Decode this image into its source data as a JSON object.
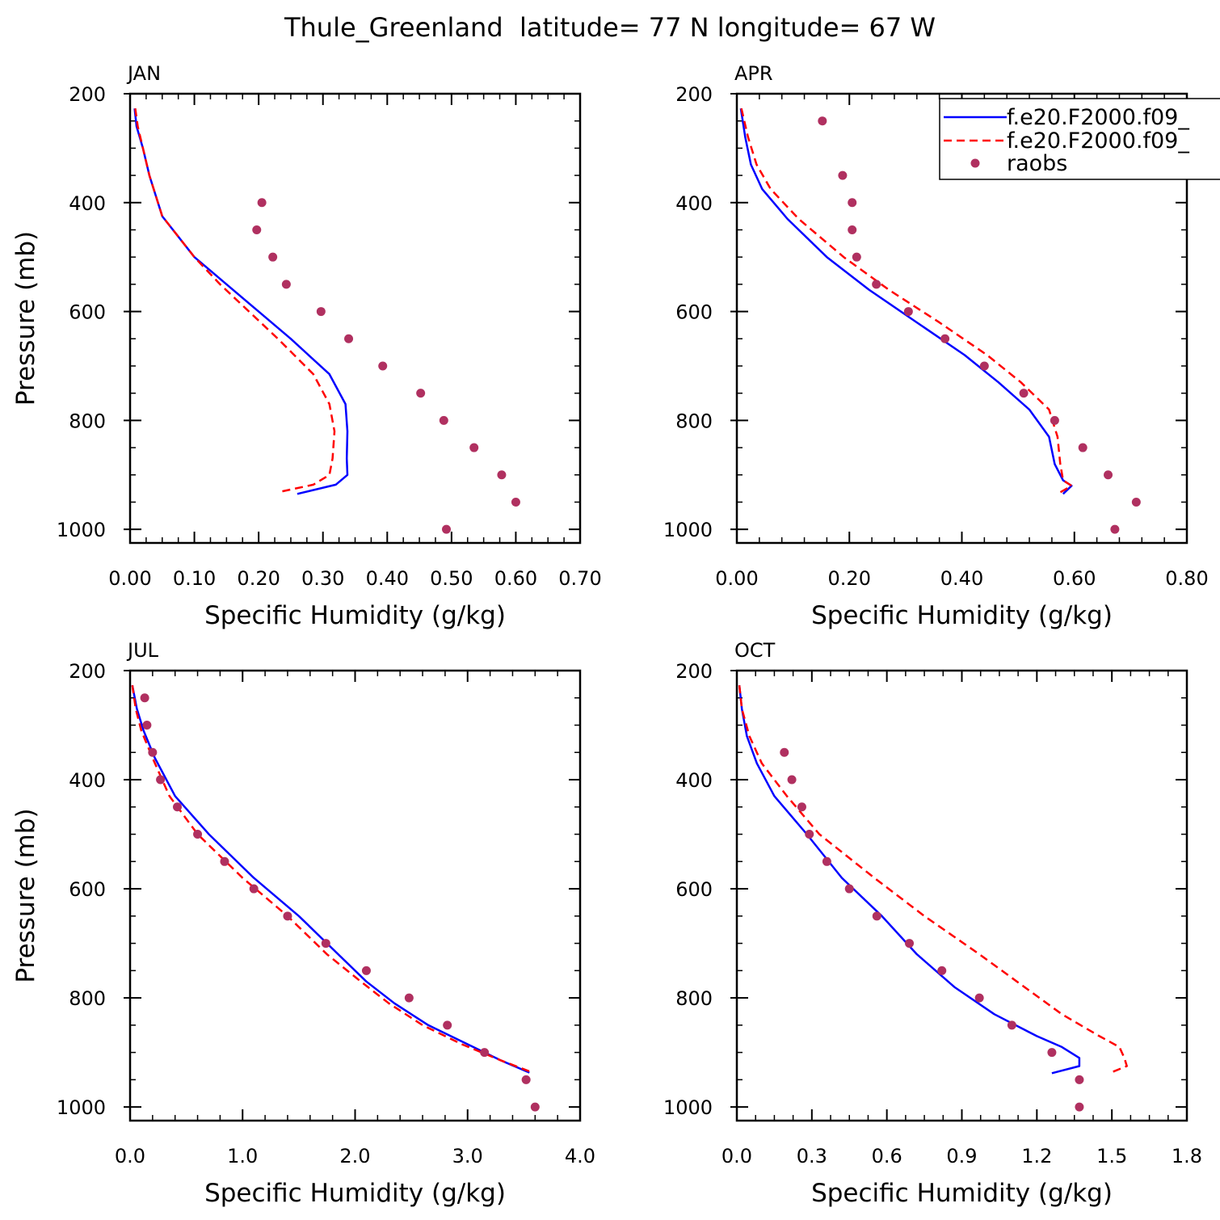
{
  "figure": {
    "title": "Thule_Greenland  latitude= 77 N longitude= 67 W"
  },
  "legend": {
    "placement": "top-right of APR panel (clipped)",
    "entries": [
      {
        "label": "f.e20.F2000.f09_",
        "style": "solid",
        "color": "#0000ff"
      },
      {
        "label": "f.e20.F2000.f09_",
        "style": "dashed",
        "color": "#ff0000"
      },
      {
        "label": "raobs",
        "style": "marker",
        "color": "#b03060"
      }
    ]
  },
  "colors": {
    "series_solid": "#0000ff",
    "series_dashed": "#ff0000",
    "raobs": "#b03060",
    "axes": "#000000"
  },
  "chart_data": [
    {
      "type": "line",
      "panel": "JAN",
      "xlabel": "Specific Humidity (g/kg)",
      "ylabel": "Pressure (mb)",
      "xlim": [
        0,
        0.7
      ],
      "ylim": [
        200,
        1025
      ],
      "y_inverted": true,
      "xticks": [
        "0.00",
        "0.10",
        "0.20",
        "0.30",
        "0.40",
        "0.50",
        "0.60",
        "0.70"
      ],
      "yticks": [
        "200",
        "400",
        "600",
        "800",
        "1000"
      ],
      "series": [
        {
          "name": "f.e20.F2000.f09_",
          "style": "solid",
          "points": [
            [
              0.007,
              227
            ],
            [
              0.01,
              260
            ],
            [
              0.02,
              300
            ],
            [
              0.03,
              350
            ],
            [
              0.05,
              425
            ],
            [
              0.1,
              500
            ],
            [
              0.15,
              550
            ],
            [
              0.2,
              600
            ],
            [
              0.25,
              650
            ],
            [
              0.31,
              715
            ],
            [
              0.335,
              770
            ],
            [
              0.338,
              820
            ],
            [
              0.337,
              870
            ],
            [
              0.338,
              900
            ],
            [
              0.32,
              918
            ],
            [
              0.26,
              935
            ]
          ]
        },
        {
          "name": "f.e20.F2000.f09_",
          "style": "dashed",
          "points": [
            [
              0.008,
              227
            ],
            [
              0.012,
              260
            ],
            [
              0.02,
              300
            ],
            [
              0.03,
              350
            ],
            [
              0.05,
              425
            ],
            [
              0.1,
              500
            ],
            [
              0.14,
              550
            ],
            [
              0.185,
              600
            ],
            [
              0.23,
              650
            ],
            [
              0.285,
              715
            ],
            [
              0.31,
              770
            ],
            [
              0.318,
              820
            ],
            [
              0.315,
              870
            ],
            [
              0.31,
              900
            ],
            [
              0.285,
              918
            ],
            [
              0.23,
              932
            ]
          ]
        },
        {
          "name": "raobs",
          "style": "marker",
          "points": [
            [
              0.205,
              400
            ],
            [
              0.197,
              450
            ],
            [
              0.222,
              500
            ],
            [
              0.243,
              550
            ],
            [
              0.297,
              600
            ],
            [
              0.34,
              650
            ],
            [
              0.393,
              700
            ],
            [
              0.452,
              750
            ],
            [
              0.488,
              800
            ],
            [
              0.535,
              850
            ],
            [
              0.578,
              900
            ],
            [
              0.6,
              950
            ],
            [
              0.492,
              1000
            ]
          ]
        }
      ]
    },
    {
      "type": "line",
      "panel": "APR",
      "xlabel": "Specific Humidity (g/kg)",
      "ylabel": "",
      "xlim": [
        0,
        0.8
      ],
      "ylim": [
        200,
        1025
      ],
      "y_inverted": true,
      "xticks": [
        "0.00",
        "0.20",
        "0.40",
        "0.60",
        "0.80"
      ],
      "yticks": [
        "200",
        "400",
        "600",
        "800",
        "1000"
      ],
      "series": [
        {
          "name": "f.e20.F2000.f09_",
          "style": "solid",
          "points": [
            [
              0.007,
              227
            ],
            [
              0.015,
              280
            ],
            [
              0.025,
              330
            ],
            [
              0.045,
              375
            ],
            [
              0.09,
              430
            ],
            [
              0.16,
              500
            ],
            [
              0.235,
              560
            ],
            [
              0.32,
              620
            ],
            [
              0.405,
              680
            ],
            [
              0.465,
              730
            ],
            [
              0.52,
              780
            ],
            [
              0.555,
              830
            ],
            [
              0.565,
              880
            ],
            [
              0.58,
              910
            ],
            [
              0.595,
              920
            ],
            [
              0.58,
              935
            ]
          ]
        },
        {
          "name": "f.e20.F2000.f09_",
          "style": "dashed",
          "points": [
            [
              0.008,
              227
            ],
            [
              0.02,
              280
            ],
            [
              0.035,
              330
            ],
            [
              0.06,
              375
            ],
            [
              0.11,
              430
            ],
            [
              0.19,
              500
            ],
            [
              0.27,
              560
            ],
            [
              0.36,
              620
            ],
            [
              0.445,
              680
            ],
            [
              0.505,
              730
            ],
            [
              0.555,
              780
            ],
            [
              0.57,
              830
            ],
            [
              0.575,
              880
            ],
            [
              0.58,
              910
            ],
            [
              0.595,
              920
            ],
            [
              0.575,
              932
            ]
          ]
        },
        {
          "name": "raobs",
          "style": "marker",
          "points": [
            [
              0.152,
              250
            ],
            [
              0.188,
              350
            ],
            [
              0.205,
              400
            ],
            [
              0.205,
              450
            ],
            [
              0.213,
              500
            ],
            [
              0.248,
              550
            ],
            [
              0.305,
              600
            ],
            [
              0.37,
              650
            ],
            [
              0.44,
              700
            ],
            [
              0.51,
              750
            ],
            [
              0.565,
              800
            ],
            [
              0.615,
              850
            ],
            [
              0.66,
              900
            ],
            [
              0.71,
              950
            ],
            [
              0.672,
              1000
            ]
          ]
        }
      ]
    },
    {
      "type": "line",
      "panel": "JUL",
      "xlabel": "Specific Humidity (g/kg)",
      "ylabel": "Pressure (mb)",
      "xlim": [
        0,
        4.0
      ],
      "ylim": [
        200,
        1025
      ],
      "y_inverted": true,
      "xticks": [
        "0.0",
        "1.0",
        "2.0",
        "3.0",
        "4.0"
      ],
      "yticks": [
        "200",
        "400",
        "600",
        "800",
        "1000"
      ],
      "series": [
        {
          "name": "f.e20.F2000.f09_",
          "style": "solid",
          "points": [
            [
              0.02,
              227
            ],
            [
              0.06,
              270
            ],
            [
              0.12,
              310
            ],
            [
              0.22,
              360
            ],
            [
              0.4,
              430
            ],
            [
              0.7,
              500
            ],
            [
              1.1,
              580
            ],
            [
              1.5,
              650
            ],
            [
              1.85,
              720
            ],
            [
              2.1,
              770
            ],
            [
              2.35,
              810
            ],
            [
              2.65,
              850
            ],
            [
              3.0,
              885
            ],
            [
              3.3,
              915
            ],
            [
              3.55,
              937
            ]
          ]
        },
        {
          "name": "f.e20.F2000.f09_",
          "style": "dashed",
          "points": [
            [
              0.02,
              227
            ],
            [
              0.05,
              270
            ],
            [
              0.1,
              310
            ],
            [
              0.2,
              360
            ],
            [
              0.35,
              430
            ],
            [
              0.6,
              500
            ],
            [
              1.0,
              580
            ],
            [
              1.4,
              650
            ],
            [
              1.75,
              720
            ],
            [
              2.05,
              770
            ],
            [
              2.3,
              810
            ],
            [
              2.6,
              850
            ],
            [
              2.95,
              885
            ],
            [
              3.3,
              915
            ],
            [
              3.58,
              937
            ]
          ]
        },
        {
          "name": "raobs",
          "style": "marker",
          "points": [
            [
              0.13,
              250
            ],
            [
              0.15,
              300
            ],
            [
              0.2,
              350
            ],
            [
              0.27,
              400
            ],
            [
              0.42,
              450
            ],
            [
              0.6,
              500
            ],
            [
              0.84,
              550
            ],
            [
              1.1,
              600
            ],
            [
              1.4,
              650
            ],
            [
              1.74,
              700
            ],
            [
              2.1,
              750
            ],
            [
              2.48,
              800
            ],
            [
              2.82,
              850
            ],
            [
              3.15,
              900
            ],
            [
              3.52,
              950
            ],
            [
              3.6,
              1000
            ]
          ]
        }
      ]
    },
    {
      "type": "line",
      "panel": "OCT",
      "xlabel": "Specific Humidity (g/kg)",
      "ylabel": "",
      "xlim": [
        0,
        1.8
      ],
      "ylim": [
        200,
        1025
      ],
      "y_inverted": true,
      "xticks": [
        "0.0",
        "0.3",
        "0.6",
        "0.9",
        "1.2",
        "1.5",
        "1.8"
      ],
      "yticks": [
        "200",
        "400",
        "600",
        "800",
        "1000"
      ],
      "series": [
        {
          "name": "f.e20.F2000.f09_",
          "style": "solid",
          "points": [
            [
              0.01,
              227
            ],
            [
              0.02,
              270
            ],
            [
              0.04,
              320
            ],
            [
              0.08,
              370
            ],
            [
              0.15,
              430
            ],
            [
              0.28,
              500
            ],
            [
              0.42,
              580
            ],
            [
              0.58,
              650
            ],
            [
              0.72,
              720
            ],
            [
              0.87,
              780
            ],
            [
              1.03,
              830
            ],
            [
              1.2,
              870
            ],
            [
              1.3,
              890
            ],
            [
              1.37,
              910
            ],
            [
              1.37,
              925
            ],
            [
              1.26,
              938
            ]
          ]
        },
        {
          "name": "f.e20.F2000.f09_",
          "style": "dashed",
          "points": [
            [
              0.01,
              227
            ],
            [
              0.02,
              270
            ],
            [
              0.05,
              320
            ],
            [
              0.1,
              370
            ],
            [
              0.2,
              430
            ],
            [
              0.33,
              500
            ],
            [
              0.55,
              580
            ],
            [
              0.75,
              650
            ],
            [
              0.97,
              720
            ],
            [
              1.15,
              780
            ],
            [
              1.3,
              830
            ],
            [
              1.45,
              870
            ],
            [
              1.53,
              890
            ],
            [
              1.55,
              910
            ],
            [
              1.56,
              925
            ],
            [
              1.49,
              938
            ]
          ]
        },
        {
          "name": "raobs",
          "style": "marker",
          "points": [
            [
              0.19,
              350
            ],
            [
              0.22,
              400
            ],
            [
              0.26,
              450
            ],
            [
              0.29,
              500
            ],
            [
              0.36,
              550
            ],
            [
              0.45,
              600
            ],
            [
              0.56,
              650
            ],
            [
              0.69,
              700
            ],
            [
              0.82,
              750
            ],
            [
              0.97,
              800
            ],
            [
              1.1,
              850
            ],
            [
              1.26,
              900
            ],
            [
              1.37,
              950
            ],
            [
              1.37,
              1000
            ]
          ]
        }
      ]
    }
  ]
}
